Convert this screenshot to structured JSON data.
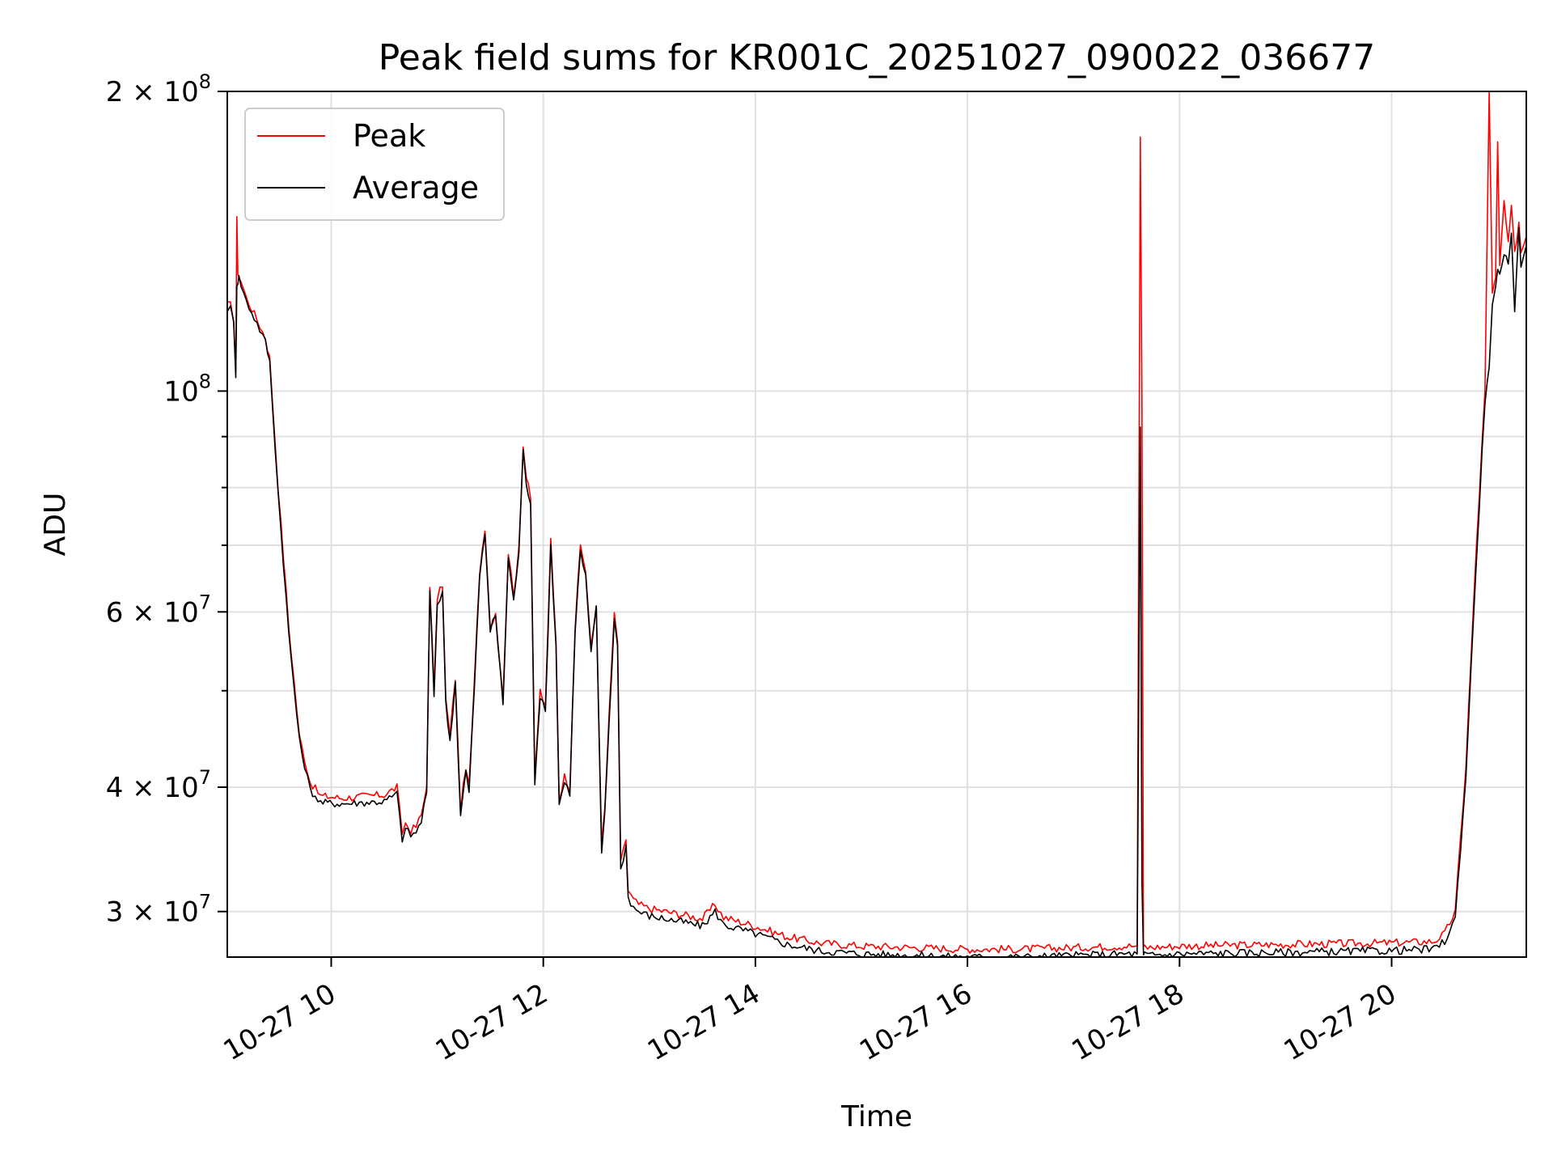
{
  "chart_data": {
    "type": "line",
    "title": "Peak field sums for KR001C_20251027_090022_036677",
    "xlabel": "Time",
    "ylabel": "ADU",
    "yscale": "log",
    "grid": true,
    "legend_position": "top-left",
    "x_unit": "hours on 2025-10-27",
    "xlim": [
      9.02,
      21.27
    ],
    "ylim": [
      27000000,
      200000000
    ],
    "x_ticks": [
      {
        "value": 10,
        "label": "10-27 10"
      },
      {
        "value": 12,
        "label": "10-27 12"
      },
      {
        "value": 14,
        "label": "10-27 14"
      },
      {
        "value": 16,
        "label": "10-27 16"
      },
      {
        "value": 18,
        "label": "10-27 18"
      },
      {
        "value": 20,
        "label": "10-27 20"
      }
    ],
    "y_major_ticks": [
      {
        "value": 30000000,
        "base": "3 × 10",
        "exp": "7"
      },
      {
        "value": 40000000,
        "base": "4 × 10",
        "exp": "7"
      },
      {
        "value": 60000000,
        "base": "6 × 10",
        "exp": "7"
      },
      {
        "value": 100000000,
        "base": "10",
        "exp": "8"
      },
      {
        "value": 200000000,
        "base": "2 × 10",
        "exp": "8"
      }
    ],
    "y_minor_ticks": [
      50000000,
      70000000,
      80000000,
      90000000
    ],
    "series": [
      {
        "name": "Peak",
        "color": "#ff0000",
        "x": [
          9.02,
          9.05,
          9.08,
          9.1,
          9.11,
          9.12,
          9.13,
          9.15,
          9.2,
          9.3,
          9.38,
          9.42,
          9.5,
          9.6,
          9.7,
          9.8,
          9.9,
          10.1,
          10.5,
          10.62,
          10.67,
          10.7,
          10.75,
          10.8,
          10.85,
          10.9,
          10.93,
          10.97,
          11.0,
          11.05,
          11.08,
          11.12,
          11.17,
          11.22,
          11.27,
          11.3,
          11.35,
          11.4,
          11.45,
          11.5,
          11.55,
          11.62,
          11.67,
          11.72,
          11.77,
          11.81,
          11.84,
          11.88,
          11.92,
          11.97,
          12.02,
          12.07,
          12.12,
          12.15,
          12.2,
          12.25,
          12.3,
          12.35,
          12.4,
          12.45,
          12.5,
          12.55,
          12.58,
          12.62,
          12.67,
          12.7,
          12.73,
          12.78,
          12.8,
          12.85,
          12.9,
          13.0,
          13.3,
          13.5,
          13.62,
          13.7,
          14.0,
          14.3,
          14.6,
          15.0,
          15.5,
          16.0,
          16.5,
          17.0,
          17.5,
          17.6,
          17.63,
          17.645,
          17.66,
          17.67,
          17.7,
          18.0,
          19.0,
          20.0,
          20.4,
          20.5,
          20.6,
          20.7,
          20.8,
          20.88,
          20.92,
          20.95,
          20.98,
          21.0,
          21.02,
          21.06,
          21.1,
          21.13,
          21.16,
          21.2,
          21.22,
          21.27
        ],
        "y": [
          122000000,
          122000000,
          118000000,
          105000000,
          150000000,
          130000000,
          131000000,
          129000000,
          124000000,
          118000000,
          113000000,
          108000000,
          80000000,
          58000000,
          45000000,
          40500000,
          39200000,
          39000000,
          39300000,
          40000000,
          36000000,
          36800000,
          36200000,
          36500000,
          37500000,
          40000000,
          64000000,
          50000000,
          62000000,
          64000000,
          49000000,
          45000000,
          51500000,
          38000000,
          42000000,
          40000000,
          51000000,
          66000000,
          73000000,
          58000000,
          60000000,
          49000000,
          69000000,
          62000000,
          70000000,
          88000000,
          82000000,
          78000000,
          41000000,
          50000000,
          48000000,
          71000000,
          56000000,
          39000000,
          41000000,
          40000000,
          58000000,
          70000000,
          66000000,
          55000000,
          61000000,
          35000000,
          38000000,
          47000000,
          60000000,
          56000000,
          33500000,
          35500000,
          31500000,
          30800000,
          30500000,
          30200000,
          29800000,
          29500000,
          30500000,
          29600000,
          29000000,
          28300000,
          27900000,
          27700000,
          27600000,
          27500000,
          27500000,
          27600000,
          27700000,
          27700000,
          180000000,
          98000000,
          27500000,
          27700000,
          27600000,
          27700000,
          27800000,
          27900000,
          28000000,
          28500000,
          30000000,
          42000000,
          70000000,
          100000000,
          200000000,
          125000000,
          130000000,
          178000000,
          133000000,
          155000000,
          140000000,
          153000000,
          137000000,
          148000000,
          138000000,
          143000000
        ]
      },
      {
        "name": "Average",
        "color": "#000000",
        "x": [
          9.02,
          9.05,
          9.08,
          9.1,
          9.11,
          9.12,
          9.13,
          9.15,
          9.2,
          9.3,
          9.38,
          9.42,
          9.5,
          9.6,
          9.7,
          9.8,
          9.9,
          10.1,
          10.5,
          10.62,
          10.67,
          10.7,
          10.75,
          10.8,
          10.85,
          10.9,
          10.93,
          10.97,
          11.0,
          11.05,
          11.08,
          11.12,
          11.17,
          11.22,
          11.27,
          11.3,
          11.35,
          11.4,
          11.45,
          11.5,
          11.55,
          11.62,
          11.67,
          11.72,
          11.77,
          11.81,
          11.84,
          11.88,
          11.92,
          11.97,
          12.02,
          12.07,
          12.12,
          12.15,
          12.2,
          12.25,
          12.3,
          12.35,
          12.4,
          12.45,
          12.5,
          12.55,
          12.58,
          12.62,
          12.67,
          12.7,
          12.73,
          12.78,
          12.8,
          12.85,
          12.9,
          13.0,
          13.3,
          13.5,
          13.62,
          13.7,
          14.0,
          14.3,
          14.6,
          15.0,
          15.5,
          16.0,
          16.5,
          17.0,
          17.5,
          17.6,
          17.63,
          17.645,
          17.66,
          17.67,
          17.7,
          18.0,
          19.0,
          20.0,
          20.4,
          20.5,
          20.6,
          20.7,
          20.8,
          20.88,
          20.92,
          20.95,
          20.98,
          21.0,
          21.02,
          21.06,
          21.1,
          21.13,
          21.16,
          21.2,
          21.22,
          21.27
        ],
        "y": [
          121000000,
          121000000,
          117000000,
          104000000,
          128000000,
          129000000,
          130000000,
          128000000,
          123000000,
          117000000,
          112000000,
          107000000,
          79000000,
          57000000,
          44500000,
          39800000,
          38600000,
          38500000,
          38700000,
          39400000,
          35500000,
          36300000,
          35800000,
          36000000,
          37000000,
          39500000,
          63000000,
          49500000,
          61000000,
          63000000,
          48500000,
          44500000,
          51000000,
          37500000,
          41500000,
          39500000,
          50500000,
          65000000,
          72000000,
          57500000,
          59500000,
          48500000,
          68000000,
          61500000,
          69000000,
          87000000,
          81000000,
          77000000,
          40500000,
          49500000,
          47500000,
          70000000,
          55500000,
          38500000,
          40500000,
          39500000,
          57500000,
          69000000,
          65000000,
          54500000,
          60500000,
          34500000,
          37500000,
          46500000,
          59000000,
          55500000,
          33000000,
          35000000,
          31000000,
          30300000,
          30000000,
          29700000,
          29300000,
          29000000,
          30000000,
          29100000,
          28500000,
          27800000,
          27400000,
          27200000,
          27100000,
          27000000,
          27000000,
          27100000,
          27200000,
          27200000,
          92000000,
          32000000,
          27000000,
          27200000,
          27100000,
          27200000,
          27300000,
          27400000,
          27500000,
          28000000,
          29500000,
          41000000,
          68000000,
          98000000,
          105000000,
          123000000,
          128000000,
          132000000,
          130000000,
          136000000,
          135000000,
          143000000,
          120000000,
          147000000,
          134000000,
          140000000
        ]
      }
    ]
  }
}
